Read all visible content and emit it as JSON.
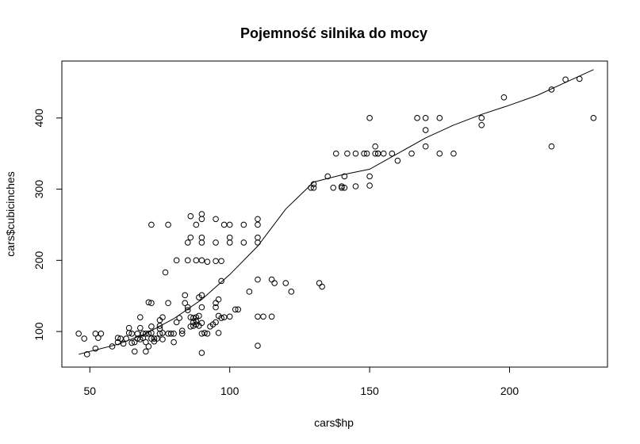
{
  "chart_data": {
    "type": "scatter",
    "title": "Pojemność silnika do mocy",
    "xlabel": "cars$hp",
    "ylabel": "cars$cubicinches",
    "xlim": [
      40,
      235
    ],
    "ylim": [
      50,
      480
    ],
    "x_ticks": [
      "50",
      "100",
      "150",
      "200"
    ],
    "y_ticks": [
      "100",
      "200",
      "300",
      "400"
    ],
    "grid": false,
    "legend": "none",
    "points": [
      [
        46,
        97
      ],
      [
        48,
        90
      ],
      [
        49,
        68
      ],
      [
        52,
        97
      ],
      [
        53,
        91
      ],
      [
        54,
        97
      ],
      [
        52,
        76
      ],
      [
        58,
        79
      ],
      [
        60,
        91
      ],
      [
        60,
        85
      ],
      [
        61,
        90
      ],
      [
        62,
        83
      ],
      [
        63,
        90
      ],
      [
        64,
        98
      ],
      [
        65,
        97
      ],
      [
        64,
        105
      ],
      [
        65,
        84
      ],
      [
        66,
        72
      ],
      [
        66,
        85
      ],
      [
        67,
        97
      ],
      [
        67,
        90
      ],
      [
        68,
        89
      ],
      [
        68,
        105
      ],
      [
        69,
        97
      ],
      [
        69,
        91
      ],
      [
        70,
        97
      ],
      [
        70,
        85
      ],
      [
        70,
        72
      ],
      [
        71,
        79
      ],
      [
        71,
        97
      ],
      [
        72,
        107
      ],
      [
        72,
        98
      ],
      [
        72,
        90
      ],
      [
        73,
        90
      ],
      [
        73,
        86
      ],
      [
        74,
        90
      ],
      [
        75,
        97
      ],
      [
        75,
        108
      ],
      [
        75,
        104
      ],
      [
        75,
        116
      ],
      [
        76,
        120
      ],
      [
        76,
        89
      ],
      [
        76,
        98
      ],
      [
        78,
        140
      ],
      [
        79,
        97
      ],
      [
        80,
        97
      ],
      [
        80,
        85
      ],
      [
        81,
        113
      ],
      [
        82,
        119
      ],
      [
        83,
        97
      ],
      [
        84,
        140
      ],
      [
        84,
        151
      ],
      [
        85,
        134
      ],
      [
        85,
        130
      ],
      [
        86,
        107
      ],
      [
        87,
        119
      ],
      [
        87,
        113
      ],
      [
        88,
        120
      ],
      [
        88,
        115
      ],
      [
        89,
        108
      ],
      [
        89,
        122
      ],
      [
        90,
        97
      ],
      [
        90,
        112
      ],
      [
        90,
        134
      ],
      [
        90,
        151
      ],
      [
        91,
        98
      ],
      [
        92,
        97
      ],
      [
        94,
        110
      ],
      [
        95,
        113
      ],
      [
        95,
        134
      ],
      [
        96,
        98
      ],
      [
        96,
        122
      ],
      [
        97,
        119
      ],
      [
        98,
        120
      ],
      [
        100,
        121
      ],
      [
        102,
        131
      ],
      [
        103,
        131
      ],
      [
        68,
        120
      ],
      [
        71,
        141
      ],
      [
        72,
        140
      ],
      [
        77,
        183
      ],
      [
        81,
        200
      ],
      [
        85,
        200
      ],
      [
        85,
        225
      ],
      [
        86,
        232
      ],
      [
        86,
        262
      ],
      [
        88,
        200
      ],
      [
        88,
        250
      ],
      [
        90,
        225
      ],
      [
        90,
        232
      ],
      [
        90,
        258
      ],
      [
        90,
        265
      ],
      [
        90,
        200
      ],
      [
        92,
        198
      ],
      [
        95,
        225
      ],
      [
        95,
        258
      ],
      [
        95,
        199
      ],
      [
        97,
        199
      ],
      [
        98,
        250
      ],
      [
        100,
        250
      ],
      [
        100,
        232
      ],
      [
        100,
        225
      ],
      [
        97,
        171
      ],
      [
        105,
        225
      ],
      [
        105,
        250
      ],
      [
        107,
        156
      ],
      [
        110,
        258
      ],
      [
        110,
        250
      ],
      [
        110,
        232
      ],
      [
        110,
        225
      ],
      [
        110,
        173
      ],
      [
        110,
        121
      ],
      [
        110,
        80
      ],
      [
        112,
        121
      ],
      [
        115,
        173
      ],
      [
        116,
        168
      ],
      [
        115,
        121
      ],
      [
        120,
        168
      ],
      [
        122,
        156
      ],
      [
        132,
        168
      ],
      [
        133,
        163
      ],
      [
        72,
        250
      ],
      [
        78,
        250
      ],
      [
        90,
        70
      ],
      [
        95,
        140
      ],
      [
        96,
        145
      ],
      [
        86,
        120
      ],
      [
        87,
        108
      ],
      [
        88,
        110
      ],
      [
        89,
        148
      ],
      [
        78,
        97
      ],
      [
        83,
        101
      ],
      [
        93,
        107
      ],
      [
        129,
        302
      ],
      [
        130,
        302
      ],
      [
        130,
        307
      ],
      [
        135,
        318
      ],
      [
        137,
        302
      ],
      [
        138,
        350
      ],
      [
        140,
        302
      ],
      [
        140,
        304
      ],
      [
        141,
        318
      ],
      [
        141,
        302
      ],
      [
        142,
        350
      ],
      [
        145,
        350
      ],
      [
        145,
        304
      ],
      [
        148,
        350
      ],
      [
        149,
        350
      ],
      [
        150,
        400
      ],
      [
        150,
        318
      ],
      [
        150,
        305
      ],
      [
        152,
        350
      ],
      [
        152,
        360
      ],
      [
        153,
        350
      ],
      [
        153,
        350
      ],
      [
        155,
        350
      ],
      [
        158,
        350
      ],
      [
        160,
        340
      ],
      [
        165,
        350
      ],
      [
        167,
        400
      ],
      [
        170,
        400
      ],
      [
        170,
        383
      ],
      [
        170,
        360
      ],
      [
        175,
        350
      ],
      [
        175,
        400
      ],
      [
        180,
        350
      ],
      [
        190,
        390
      ],
      [
        190,
        400
      ],
      [
        198,
        429
      ],
      [
        215,
        440
      ],
      [
        215,
        360
      ],
      [
        220,
        454
      ],
      [
        225,
        455
      ],
      [
        230,
        400
      ]
    ],
    "lowess": [
      [
        46,
        68
      ],
      [
        60,
        82
      ],
      [
        70,
        97
      ],
      [
        80,
        118
      ],
      [
        90,
        145
      ],
      [
        100,
        180
      ],
      [
        110,
        220
      ],
      [
        120,
        272
      ],
      [
        130,
        310
      ],
      [
        140,
        320
      ],
      [
        150,
        328
      ],
      [
        160,
        350
      ],
      [
        170,
        372
      ],
      [
        180,
        390
      ],
      [
        190,
        405
      ],
      [
        200,
        418
      ],
      [
        210,
        432
      ],
      [
        220,
        450
      ],
      [
        230,
        468
      ]
    ]
  }
}
